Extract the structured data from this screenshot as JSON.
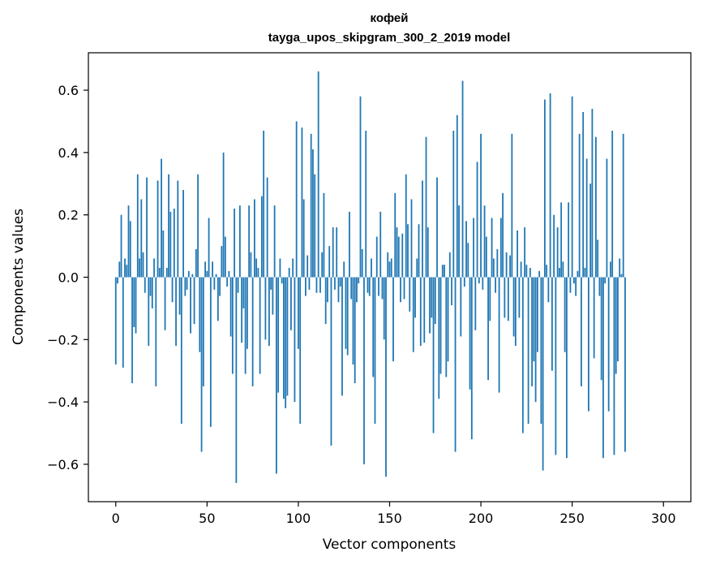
{
  "chart_data": {
    "type": "bar",
    "title_line1": "кофей",
    "title_line2": "tayga_upos_skipgram_300_2_2019 model",
    "xlabel": "Vector components",
    "ylabel": "Components values",
    "xlim": [
      -15,
      315
    ],
    "ylim": [
      -0.72,
      0.72
    ],
    "xticks": [
      0,
      50,
      100,
      150,
      200,
      250,
      300
    ],
    "xtick_labels": [
      "0",
      "50",
      "100",
      "150",
      "200",
      "250",
      "300"
    ],
    "yticks": [
      -0.6,
      -0.4,
      -0.2,
      0.0,
      0.2,
      0.4,
      0.6
    ],
    "ytick_labels": [
      "−0.6",
      "−0.4",
      "−0.2",
      "0.0",
      "0.2",
      "0.4",
      "0.6"
    ],
    "grid": false,
    "bar_color": "#1f77b4",
    "values": [
      -0.28,
      -0.02,
      0.05,
      0.2,
      -0.29,
      0.06,
      0.04,
      0.23,
      0.18,
      -0.34,
      -0.16,
      -0.18,
      0.33,
      0.06,
      0.25,
      0.08,
      -0.05,
      0.32,
      -0.22,
      -0.06,
      -0.1,
      0.06,
      -0.35,
      0.31,
      0.03,
      0.38,
      0.15,
      -0.17,
      0.03,
      0.33,
      0.21,
      -0.08,
      0.22,
      -0.22,
      0.31,
      -0.12,
      -0.47,
      0.28,
      -0.06,
      -0.04,
      0.02,
      -0.18,
      0.01,
      -0.15,
      0.09,
      0.33,
      -0.24,
      -0.56,
      -0.35,
      0.05,
      0.02,
      0.19,
      -0.48,
      0.05,
      -0.04,
      0.01,
      -0.14,
      -0.06,
      0.1,
      0.4,
      0.13,
      -0.03,
      0.02,
      -0.19,
      -0.31,
      0.22,
      -0.66,
      -0.05,
      0.23,
      -0.21,
      -0.1,
      -0.31,
      -0.23,
      0.23,
      0.08,
      -0.35,
      0.25,
      0.06,
      0.03,
      -0.31,
      0.26,
      0.47,
      -0.2,
      0.32,
      -0.22,
      -0.04,
      -0.12,
      0.23,
      -0.63,
      -0.37,
      0.06,
      -0.02,
      -0.39,
      -0.42,
      -0.38,
      0.03,
      -0.17,
      0.06,
      -0.4,
      0.5,
      -0.23,
      -0.47,
      0.48,
      0.25,
      -0.06,
      0.07,
      -0.04,
      0.46,
      0.41,
      0.33,
      -0.05,
      0.66,
      -0.05,
      0.08,
      0.27,
      -0.15,
      -0.08,
      0.1,
      -0.54,
      0.16,
      -0.04,
      0.16,
      -0.08,
      -0.03,
      -0.38,
      0.05,
      -0.23,
      -0.25,
      0.21,
      -0.07,
      -0.28,
      -0.34,
      -0.08,
      -0.02,
      0.58,
      0.09,
      -0.6,
      0.47,
      -0.05,
      -0.06,
      0.06,
      -0.32,
      -0.47,
      0.13,
      -0.06,
      0.21,
      -0.07,
      -0.2,
      -0.64,
      0.08,
      0.05,
      0.06,
      -0.27,
      0.27,
      0.16,
      0.13,
      -0.08,
      0.14,
      -0.07,
      0.33,
      0.17,
      -0.11,
      0.25,
      -0.24,
      -0.13,
      0.06,
      0.17,
      -0.22,
      0.31,
      -0.21,
      0.45,
      0.16,
      -0.18,
      -0.13,
      -0.5,
      -0.15,
      0.32,
      -0.39,
      -0.31,
      0.04,
      0.04,
      -0.32,
      -0.27,
      0.08,
      -0.09,
      0.47,
      -0.56,
      0.52,
      0.23,
      -0.19,
      0.63,
      -0.03,
      0.18,
      0.11,
      -0.36,
      -0.52,
      0.19,
      -0.17,
      0.37,
      -0.02,
      0.46,
      -0.04,
      0.23,
      0.13,
      -0.33,
      -0.14,
      0.19,
      0.06,
      -0.05,
      0.09,
      -0.37,
      0.19,
      0.27,
      -0.13,
      0.08,
      -0.14,
      0.07,
      0.46,
      -0.19,
      -0.22,
      0.15,
      -0.13,
      0.05,
      -0.5,
      0.16,
      0.04,
      -0.47,
      0.03,
      -0.35,
      -0.27,
      -0.4,
      -0.24,
      0.02,
      -0.47,
      -0.62,
      0.57,
      0.04,
      -0.08,
      0.59,
      -0.3,
      0.2,
      -0.57,
      0.16,
      0.03,
      0.24,
      0.05,
      -0.24,
      -0.58,
      0.24,
      -0.05,
      0.58,
      -0.02,
      -0.06,
      0.02,
      0.46,
      -0.35,
      0.53,
      0.03,
      0.38,
      -0.43,
      0.3,
      0.54,
      -0.26,
      0.45,
      0.12,
      -0.06,
      -0.33,
      -0.58,
      -0.02,
      0.38,
      -0.43,
      0.05,
      0.47,
      -0.57,
      -0.31,
      -0.27,
      0.06,
      0.01,
      0.46,
      -0.56
    ]
  }
}
